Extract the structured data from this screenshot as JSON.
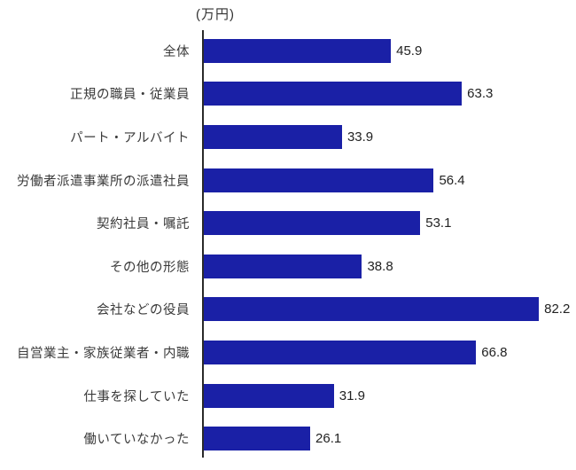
{
  "header": {
    "unit_label": "(万円)"
  },
  "colors": {
    "bar": "#1a20a6",
    "axis": "#2a2a2a",
    "category_text": "#3a3a3a",
    "value_text": "#222222",
    "background": "#ffffff"
  },
  "chart_data": {
    "type": "bar",
    "orientation": "horizontal",
    "title": "",
    "xlabel": "(万円)",
    "ylabel": "",
    "unit": "万円",
    "xlim": [
      0,
      90
    ],
    "grid": false,
    "legend": false,
    "categories": [
      "全体",
      "正規の職員・従業員",
      "パート・アルバイト",
      "労働者派遣事業所の派遣社員",
      "契約社員・嘱託",
      "その他の形態",
      "会社などの役員",
      "自営業主・家族従業者・内職",
      "仕事を探していた",
      "働いていなかった"
    ],
    "values": [
      45.9,
      63.3,
      33.9,
      56.4,
      53.1,
      38.8,
      82.2,
      66.8,
      31.9,
      26.1
    ]
  }
}
